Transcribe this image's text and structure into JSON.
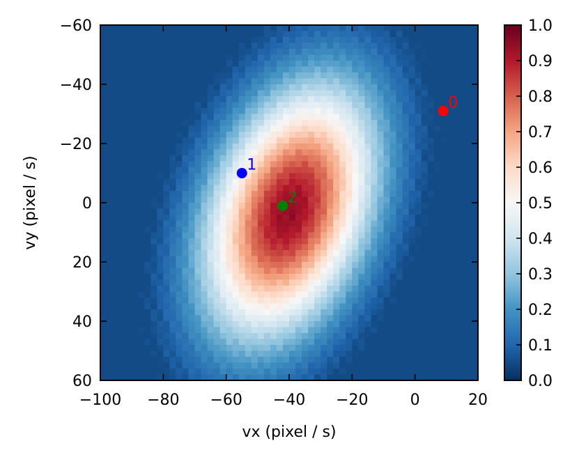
{
  "chart_data": {
    "type": "heatmap",
    "title": "",
    "xlabel": "vx (pixel / s)",
    "ylabel": "vy (pixel / s)",
    "xlim": [
      -100,
      20
    ],
    "ylim": [
      -60,
      60
    ],
    "y_inverted": true,
    "x_ticks": [
      "−100",
      "−80",
      "−60",
      "−40",
      "−20",
      "0",
      "20"
    ],
    "y_ticks": [
      "−60",
      "−40",
      "−20",
      "0",
      "20",
      "40",
      "60"
    ],
    "colormap": "RdBu_r",
    "colorbar": {
      "range": [
        0.0,
        1.0
      ],
      "ticks": [
        "0.0",
        "0.1",
        "0.2",
        "0.3",
        "0.4",
        "0.5",
        "0.6",
        "0.7",
        "0.8",
        "0.9",
        "1.0"
      ]
    },
    "points": [
      {
        "label": "0",
        "x": 9,
        "y": -31,
        "color": "#ff0000"
      },
      {
        "label": "1",
        "x": -55,
        "y": -10,
        "color": "#0000ff"
      },
      {
        "label": "2",
        "x": -42,
        "y": 1,
        "color": "#008000"
      }
    ]
  }
}
